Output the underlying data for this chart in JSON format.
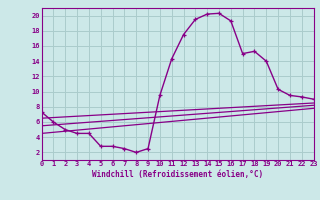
{
  "xlabel": "Windchill (Refroidissement éolien,°C)",
  "xlim": [
    0,
    23
  ],
  "ylim": [
    1,
    21
  ],
  "yticks": [
    2,
    4,
    6,
    8,
    10,
    12,
    14,
    16,
    18,
    20
  ],
  "xticks": [
    0,
    1,
    2,
    3,
    4,
    5,
    6,
    7,
    8,
    9,
    10,
    11,
    12,
    13,
    14,
    15,
    16,
    17,
    18,
    19,
    20,
    21,
    22,
    23
  ],
  "background_color": "#cce8e8",
  "grid_color": "#aacccc",
  "line_color": "#880088",
  "line1_x": [
    0,
    1,
    2,
    3,
    4,
    5,
    6,
    7,
    8,
    9,
    10,
    11,
    12,
    13,
    14,
    15,
    16,
    17,
    18,
    19,
    20,
    21,
    22,
    23
  ],
  "line1_y": [
    7.3,
    6.0,
    5.0,
    4.5,
    4.5,
    2.8,
    2.8,
    2.5,
    2.0,
    2.5,
    9.5,
    14.3,
    17.5,
    19.5,
    20.2,
    20.3,
    19.3,
    15.0,
    15.3,
    14.0,
    10.3,
    9.5,
    9.3,
    9.0
  ],
  "line2_x": [
    0,
    23
  ],
  "line2_y": [
    6.5,
    8.5
  ],
  "line3_x": [
    0,
    23
  ],
  "line3_y": [
    5.5,
    8.2
  ],
  "line4_x": [
    0,
    23
  ],
  "line4_y": [
    4.5,
    7.8
  ]
}
